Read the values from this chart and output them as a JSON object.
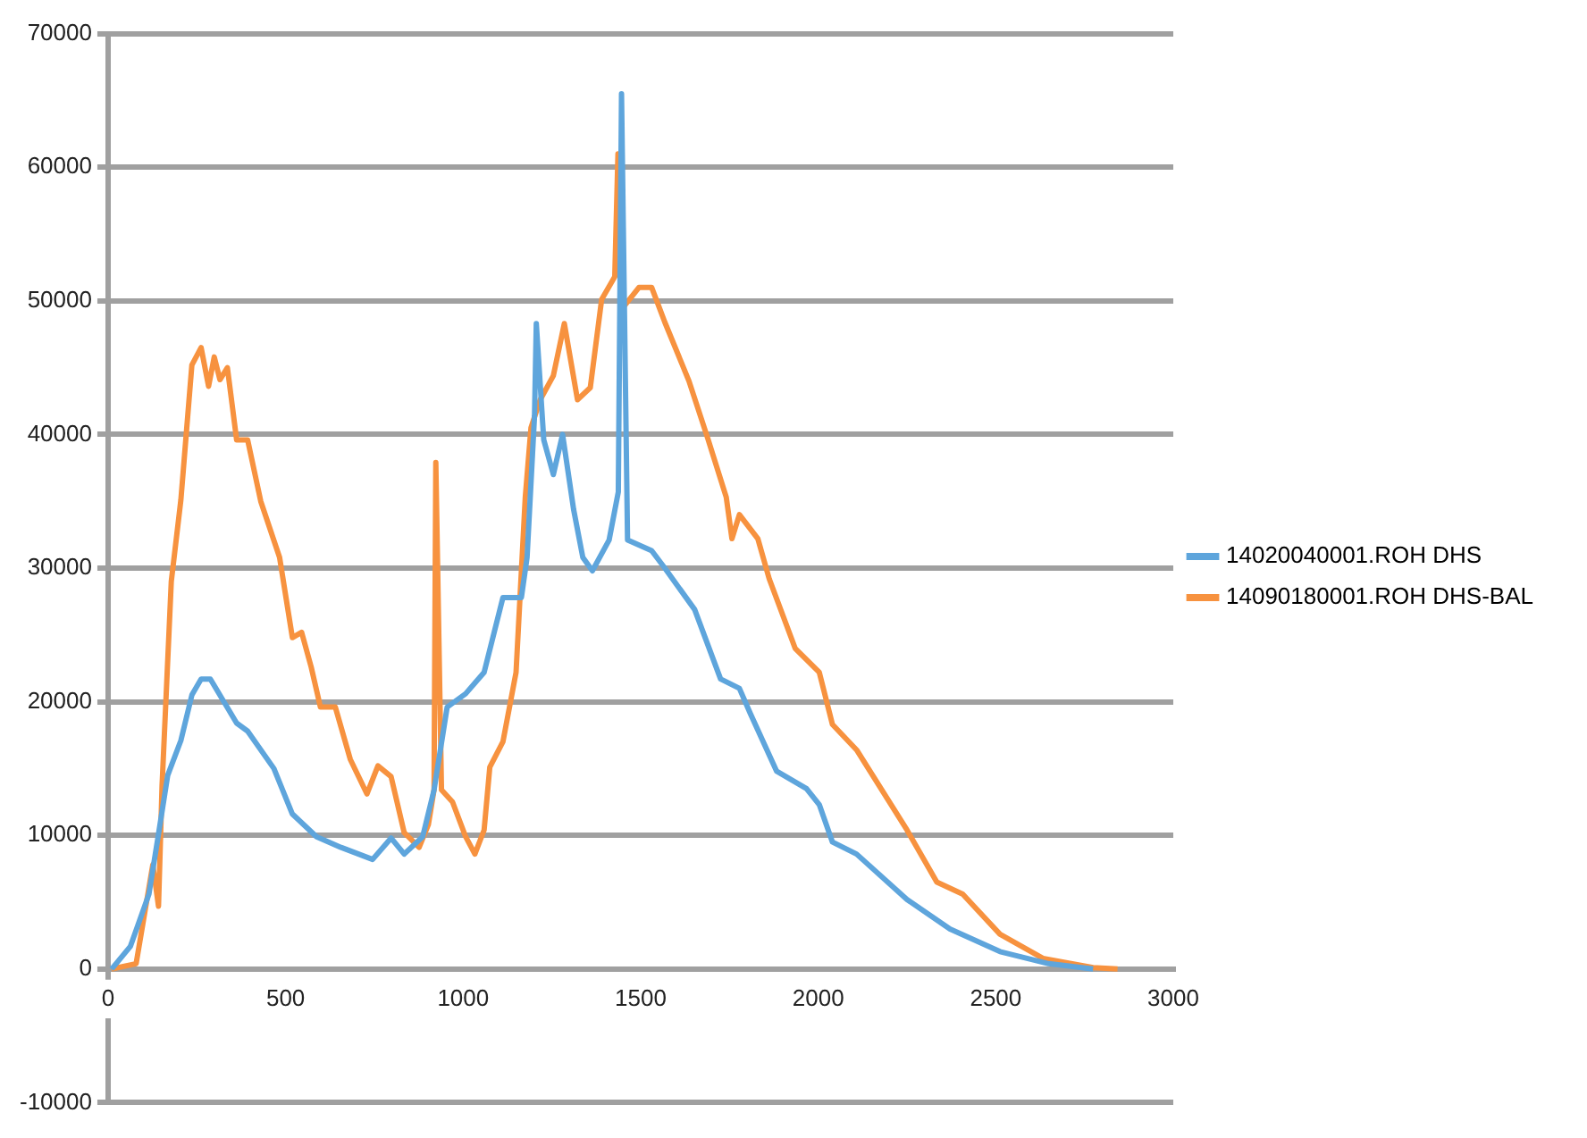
{
  "chart_data": {
    "type": "line",
    "xlim": [
      0,
      3000
    ],
    "xticks": [
      0,
      500,
      1000,
      1500,
      2000,
      2500,
      3000
    ],
    "ylim": [
      -10000,
      70000
    ],
    "yticks": [
      -10000,
      0,
      10000,
      20000,
      30000,
      40000,
      50000,
      60000,
      70000
    ],
    "grid": "y",
    "legend": "right",
    "marker": "none",
    "line_style": "solid",
    "series": [
      {
        "name": "14020040001.ROH DHS",
        "color": "#5ea5dc",
        "x": [
          10,
          63,
          115,
          142,
          168,
          205,
          236,
          262,
          288,
          362,
          393,
          467,
          519,
          587,
          656,
          745,
          797,
          834,
          886,
          918,
          955,
          1007,
          1059,
          1112,
          1164,
          1180,
          1201,
          1206,
          1227,
          1254,
          1280,
          1311,
          1337,
          1364,
          1411,
          1437,
          1446,
          1463,
          1531,
          1568,
          1652,
          1725,
          1778,
          1809,
          1883,
          1967,
          2003,
          2040,
          2108,
          2250,
          2371,
          2512,
          2649,
          2774
        ],
        "values": [
          0,
          1700,
          5600,
          10100,
          14500,
          17100,
          20500,
          21700,
          21700,
          18400,
          17800,
          15000,
          11600,
          9900,
          9100,
          8200,
          9800,
          8600,
          9900,
          13400,
          19600,
          20600,
          22200,
          27800,
          27800,
          30800,
          41400,
          48300,
          39600,
          37000,
          40000,
          34400,
          30800,
          29800,
          32100,
          35700,
          65500,
          32100,
          31300,
          30000,
          26900,
          21700,
          21000,
          19100,
          14800,
          13500,
          12300,
          9500,
          8600,
          5200,
          3000,
          1300,
          400,
          0
        ]
      },
      {
        "name": "14090180001.ROH DHS-BAL",
        "color": "#f7923f",
        "x": [
          10,
          79,
          126,
          142,
          152,
          178,
          205,
          236,
          262,
          283,
          299,
          315,
          336,
          362,
          393,
          430,
          483,
          519,
          545,
          572,
          598,
          640,
          682,
          729,
          760,
          797,
          834,
          876,
          902,
          918,
          923,
          939,
          970,
          1007,
          1033,
          1059,
          1075,
          1112,
          1149,
          1175,
          1191,
          1217,
          1254,
          1285,
          1322,
          1358,
          1390,
          1427,
          1436,
          1453,
          1495,
          1531,
          1568,
          1636,
          1689,
          1741,
          1757,
          1778,
          1830,
          1862,
          1935,
          2003,
          2040,
          2108,
          2250,
          2334,
          2407,
          2512,
          2633,
          2774,
          2843
        ],
        "values": [
          0,
          400,
          7800,
          4700,
          13700,
          29000,
          35100,
          45200,
          46500,
          43600,
          45800,
          44100,
          45000,
          39600,
          39600,
          35000,
          30800,
          24800,
          25200,
          22600,
          19600,
          19600,
          15700,
          13100,
          15200,
          14400,
          10200,
          9100,
          10800,
          13400,
          37900,
          13400,
          12500,
          9900,
          8600,
          10400,
          15100,
          17000,
          22200,
          35300,
          40500,
          42600,
          44400,
          48300,
          42600,
          43500,
          50100,
          51800,
          61000,
          49600,
          51000,
          51000,
          48400,
          44000,
          39700,
          35300,
          32200,
          34000,
          32200,
          29200,
          24000,
          22200,
          18300,
          16400,
          10400,
          6500,
          5600,
          2600,
          800,
          100,
          0
        ]
      }
    ]
  }
}
